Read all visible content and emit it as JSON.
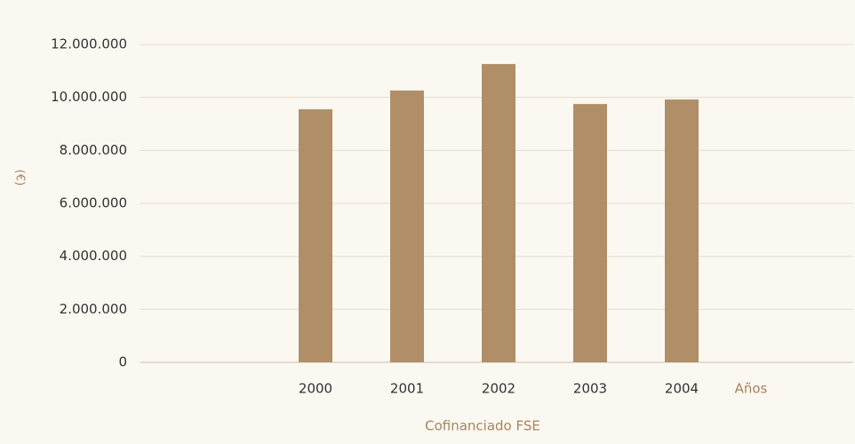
{
  "chart_data": {
    "type": "bar",
    "categories": [
      "2000",
      "2001",
      "2002",
      "2003",
      "2004"
    ],
    "values": [
      9550000,
      10260000,
      11260000,
      9750000,
      9920000
    ],
    "color": "#b08f68",
    "ylim": [
      0,
      12000000
    ],
    "yticks": [
      0,
      {
        "value": 2000000,
        "label": "2.000.000"
      },
      {
        "value": 4000000,
        "label": "4.000.000"
      },
      {
        "value": 6000000,
        "label": "6.000.000"
      },
      {
        "value": 8000000,
        "label": "8.000.000"
      },
      {
        "value": 10000000,
        "label": "10.000.000"
      },
      {
        "value": 12000000,
        "label": "12.000.000"
      }
    ],
    "y_label": "(€)",
    "x_unit_label": "Años",
    "x_label": "Cofinanciado FSE",
    "grid": true
  }
}
